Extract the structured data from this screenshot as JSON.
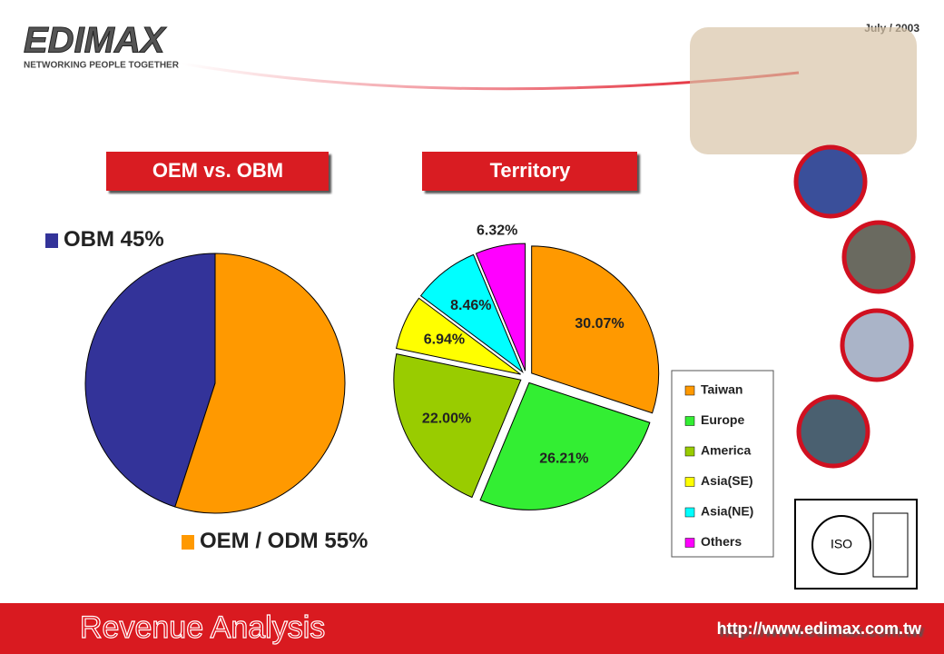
{
  "header": {
    "logo": "EDIMAX",
    "tagline": "NETWORKING PEOPLE TOGETHER",
    "date": "July / 2003"
  },
  "chart_data": [
    {
      "type": "pie",
      "title": "OEM vs. OBM",
      "direction": "counterclockwise",
      "categories": [
        "OBM",
        "OEM / ODM"
      ],
      "values": [
        45,
        55
      ],
      "value_labels": [
        "45%",
        "55%"
      ],
      "colors": [
        "#333399",
        "#ff9900"
      ]
    },
    {
      "type": "pie",
      "title": "Territory",
      "direction": "clockwise",
      "exploded": true,
      "legend": "right",
      "categories": [
        "Taiwan",
        "Europe",
        "America",
        "Asia(SE)",
        "Asia(NE)",
        "Others"
      ],
      "values": [
        30.07,
        26.21,
        22.0,
        6.94,
        8.46,
        6.32
      ],
      "value_labels": [
        "30.07%",
        "26.21%",
        "22.00%",
        "6.94%",
        "8.46%",
        "6.32%"
      ],
      "colors": [
        "#ff9900",
        "#33ee33",
        "#99cc00",
        "#ffff00",
        "#00ffff",
        "#ff00ff"
      ]
    }
  ],
  "footer": {
    "title": "Revenue Analysis",
    "url": "http://www.edimax.com.tw"
  }
}
